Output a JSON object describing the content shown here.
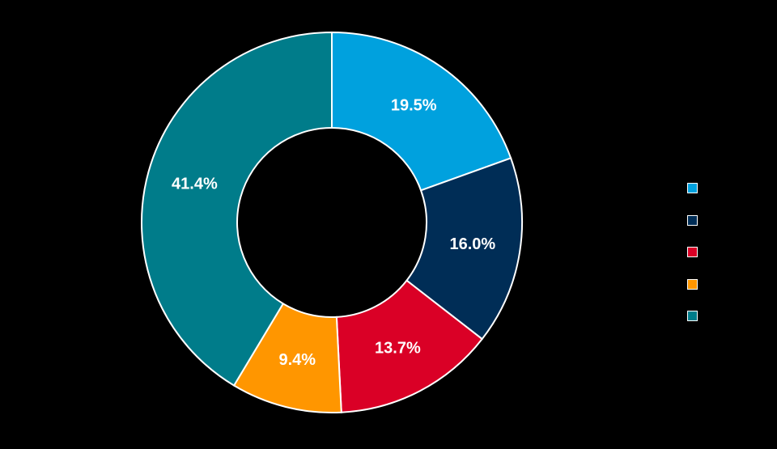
{
  "chart_data": {
    "type": "pie",
    "variant": "donut",
    "title": "",
    "start_angle_deg": 0,
    "direction": "clockwise",
    "slices": [
      {
        "label": "",
        "value": 19.5,
        "display": "19.5%",
        "color": "#00A1DE"
      },
      {
        "label": "",
        "value": 16.0,
        "display": "16.0%",
        "color": "#002D56"
      },
      {
        "label": "",
        "value": 13.7,
        "display": "13.7%",
        "color": "#DA0026"
      },
      {
        "label": "",
        "value": 9.4,
        "display": "9.4%",
        "color": "#FF9600"
      },
      {
        "label": "",
        "value": 41.4,
        "display": "41.4%",
        "color": "#007C8A"
      }
    ],
    "legend": {
      "position": "right",
      "entries": [
        "",
        "",
        "",
        "",
        ""
      ]
    },
    "background": "#000000",
    "slice_border": "#FFFFFF"
  }
}
